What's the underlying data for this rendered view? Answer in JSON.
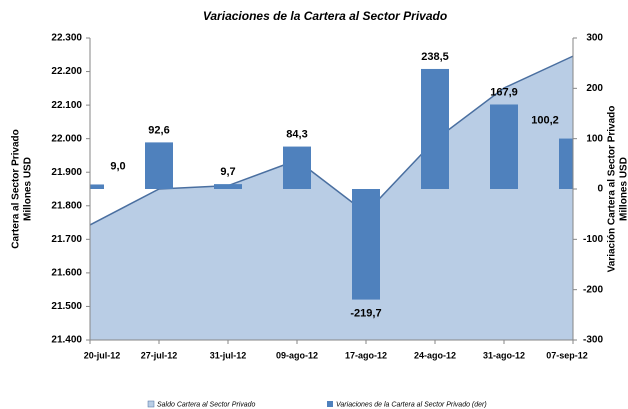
{
  "chart_data": {
    "type": "area_bar",
    "title": "Variaciones de la Cartera al Sector Privado",
    "ylabel": [
      "Cartera al Sector Privado",
      "Millones USD"
    ],
    "y2label": [
      "Variación Cartera al Sector Privado",
      "Millones USD"
    ],
    "categories": [
      "20-jul-12",
      "27-jul-12",
      "31-jul-12",
      "09-ago-12",
      "17-ago-12",
      "24-ago-12",
      "31-ago-12",
      "07-sep-12"
    ],
    "series": [
      {
        "name": "Saldo Cartera al Sector Privado",
        "type": "area",
        "color": "#b9cde5",
        "line_color": "#4a6fa0",
        "values": [
          21743,
          21850,
          21860,
          21936,
          21779,
          21996,
          22151,
          22246
        ]
      },
      {
        "name": "Variaciones de la Cartera al Sector Privado (der)",
        "type": "bar",
        "axis": "y2",
        "color": "#4f81bd",
        "values": [
          9.0,
          92.6,
          9.7,
          84.3,
          -219.7,
          238.5,
          167.9,
          100.2
        ],
        "value_labels": [
          "9,0",
          "92,6",
          "9,7",
          "84,3",
          "-219,7",
          "238,5",
          "167,9",
          "100,2"
        ]
      }
    ],
    "ylim": [
      21400,
      22300
    ],
    "yticks": [
      {
        "value": 21400,
        "label": "21.400"
      },
      {
        "value": 21500,
        "label": "21.500"
      },
      {
        "value": 21600,
        "label": "21.600"
      },
      {
        "value": 21700,
        "label": "21.700"
      },
      {
        "value": 21800,
        "label": "21.800"
      },
      {
        "value": 21900,
        "label": "21.900"
      },
      {
        "value": 22000,
        "label": "22.000"
      },
      {
        "value": 22100,
        "label": "22.100"
      },
      {
        "value": 22200,
        "label": "22.200"
      },
      {
        "value": 22300,
        "label": "22.300"
      }
    ],
    "y2lim": [
      -300,
      300
    ],
    "y2ticks": [
      -300,
      -200,
      -100,
      0,
      100,
      200,
      300
    ],
    "legend": "bottom"
  }
}
